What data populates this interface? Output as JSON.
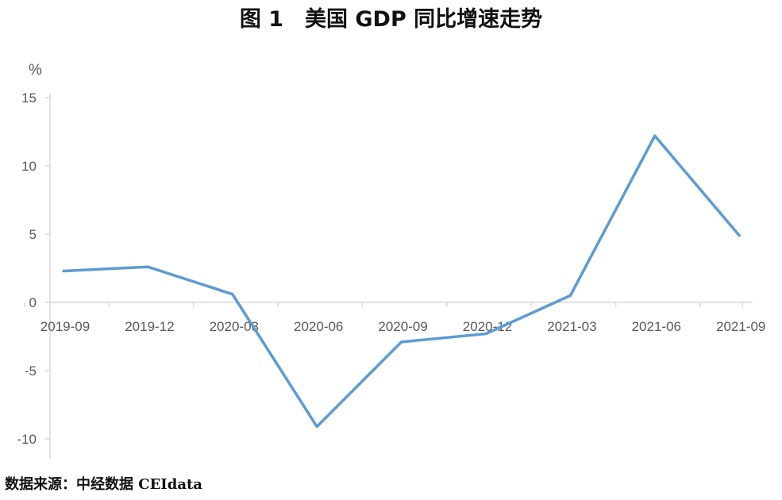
{
  "title": "图 1　美国 GDP 同比增速走势",
  "source": "数据来源：中经数据 CEIdata",
  "chart_data": {
    "type": "line",
    "title": "图 1　美国 GDP 同比增速走势",
    "unit_label": "%",
    "xlabel": "",
    "ylabel": "%",
    "categories": [
      "2019-09",
      "2019-12",
      "2020-03",
      "2020-06",
      "2020-09",
      "2020-12",
      "2021-03",
      "2021-06",
      "2021-09"
    ],
    "series": [
      {
        "values": [
          2.3,
          2.6,
          0.6,
          -9.1,
          -2.9,
          -2.3,
          0.5,
          12.2,
          4.9
        ]
      }
    ],
    "ylim": [
      -10,
      15
    ],
    "yticks": [
      15,
      10,
      5,
      0,
      -5,
      -10
    ],
    "grid": false,
    "legend": "none",
    "line_color": "#5B9BD5",
    "axis_color": "#D9D9D9"
  }
}
